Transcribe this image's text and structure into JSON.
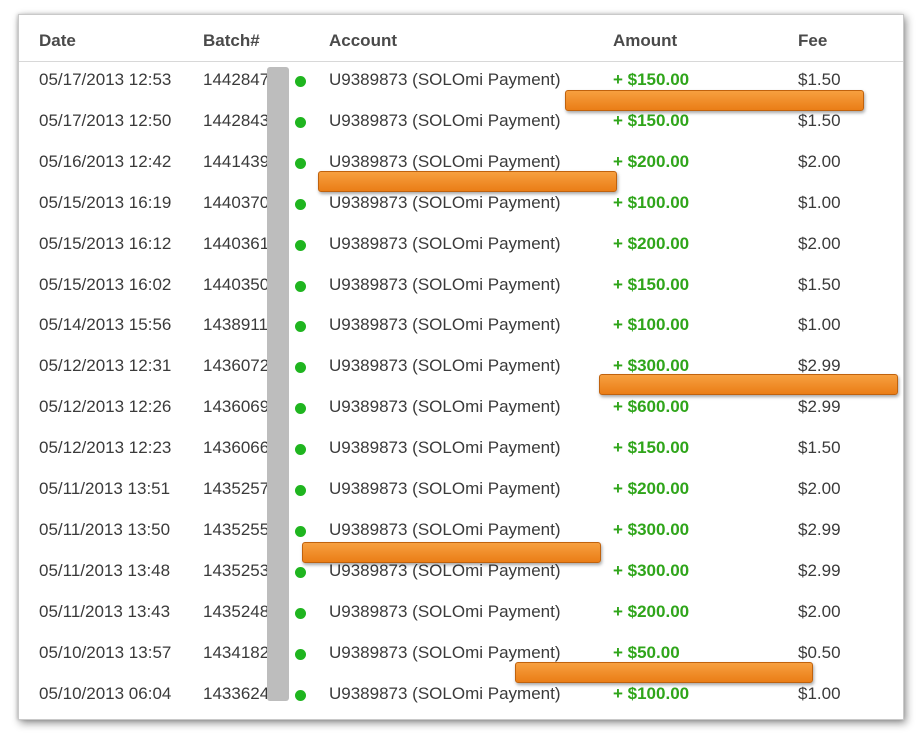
{
  "table": {
    "headers": {
      "date": "Date",
      "batch": "Batch#",
      "account": "Account",
      "amount": "Amount",
      "fee": "Fee"
    },
    "status_color": "#1fb51f",
    "amount_color": "#2fa51a",
    "redaction_color": "#ef8a22",
    "rows": [
      {
        "date": "05/17/2013 12:53",
        "batch": "1442847",
        "account": "U9389873 (SOLOmi Payment)",
        "amount": "+ $150.00",
        "fee": "$1.50"
      },
      {
        "date": "05/17/2013 12:50",
        "batch": "1442843",
        "account": "U9389873 (SOLOmi Payment)",
        "amount": "+ $150.00",
        "fee": "$1.50"
      },
      {
        "date": "05/16/2013 12:42",
        "batch": "1441439",
        "account": "U9389873 (SOLOmi Payment)",
        "amount": "+ $200.00",
        "fee": "$2.00"
      },
      {
        "date": "05/15/2013 16:19",
        "batch": "1440370",
        "account": "U9389873 (SOLOmi Payment)",
        "amount": "+ $100.00",
        "fee": "$1.00"
      },
      {
        "date": "05/15/2013 16:12",
        "batch": "1440361",
        "account": "U9389873 (SOLOmi Payment)",
        "amount": "+ $200.00",
        "fee": "$2.00"
      },
      {
        "date": "05/15/2013 16:02",
        "batch": "1440350",
        "account": "U9389873 (SOLOmi Payment)",
        "amount": "+ $150.00",
        "fee": "$1.50"
      },
      {
        "date": "05/14/2013 15:56",
        "batch": "1438911",
        "account": "U9389873 (SOLOmi Payment)",
        "amount": "+ $100.00",
        "fee": "$1.00"
      },
      {
        "date": "05/12/2013 12:31",
        "batch": "1436072",
        "account": "U9389873 (SOLOmi Payment)",
        "amount": "+ $300.00",
        "fee": "$2.99"
      },
      {
        "date": "05/12/2013 12:26",
        "batch": "1436069",
        "account": "U9389873 (SOLOmi Payment)",
        "amount": "+ $600.00",
        "fee": "$2.99"
      },
      {
        "date": "05/12/2013 12:23",
        "batch": "1436066",
        "account": "U9389873 (SOLOmi Payment)",
        "amount": "+ $150.00",
        "fee": "$1.50"
      },
      {
        "date": "05/11/2013 13:51",
        "batch": "1435257",
        "account": "U9389873 (SOLOmi Payment)",
        "amount": "+ $200.00",
        "fee": "$2.00"
      },
      {
        "date": "05/11/2013 13:50",
        "batch": "1435255",
        "account": "U9389873 (SOLOmi Payment)",
        "amount": "+ $300.00",
        "fee": "$2.99"
      },
      {
        "date": "05/11/2013 13:48",
        "batch": "1435253",
        "account": "U9389873 (SOLOmi Payment)",
        "amount": "+ $300.00",
        "fee": "$2.99"
      },
      {
        "date": "05/11/2013 13:43",
        "batch": "1435248",
        "account": "U9389873 (SOLOmi Payment)",
        "amount": "+ $200.00",
        "fee": "$2.00"
      },
      {
        "date": "05/10/2013 13:57",
        "batch": "1434182",
        "account": "U9389873 (SOLOmi Payment)",
        "amount": "+ $50.00",
        "fee": "$0.50"
      },
      {
        "date": "05/10/2013 06:04",
        "batch": "1433624",
        "account": "U9389873 (SOLOmi Payment)",
        "amount": "+ $100.00",
        "fee": "$1.00"
      }
    ]
  }
}
